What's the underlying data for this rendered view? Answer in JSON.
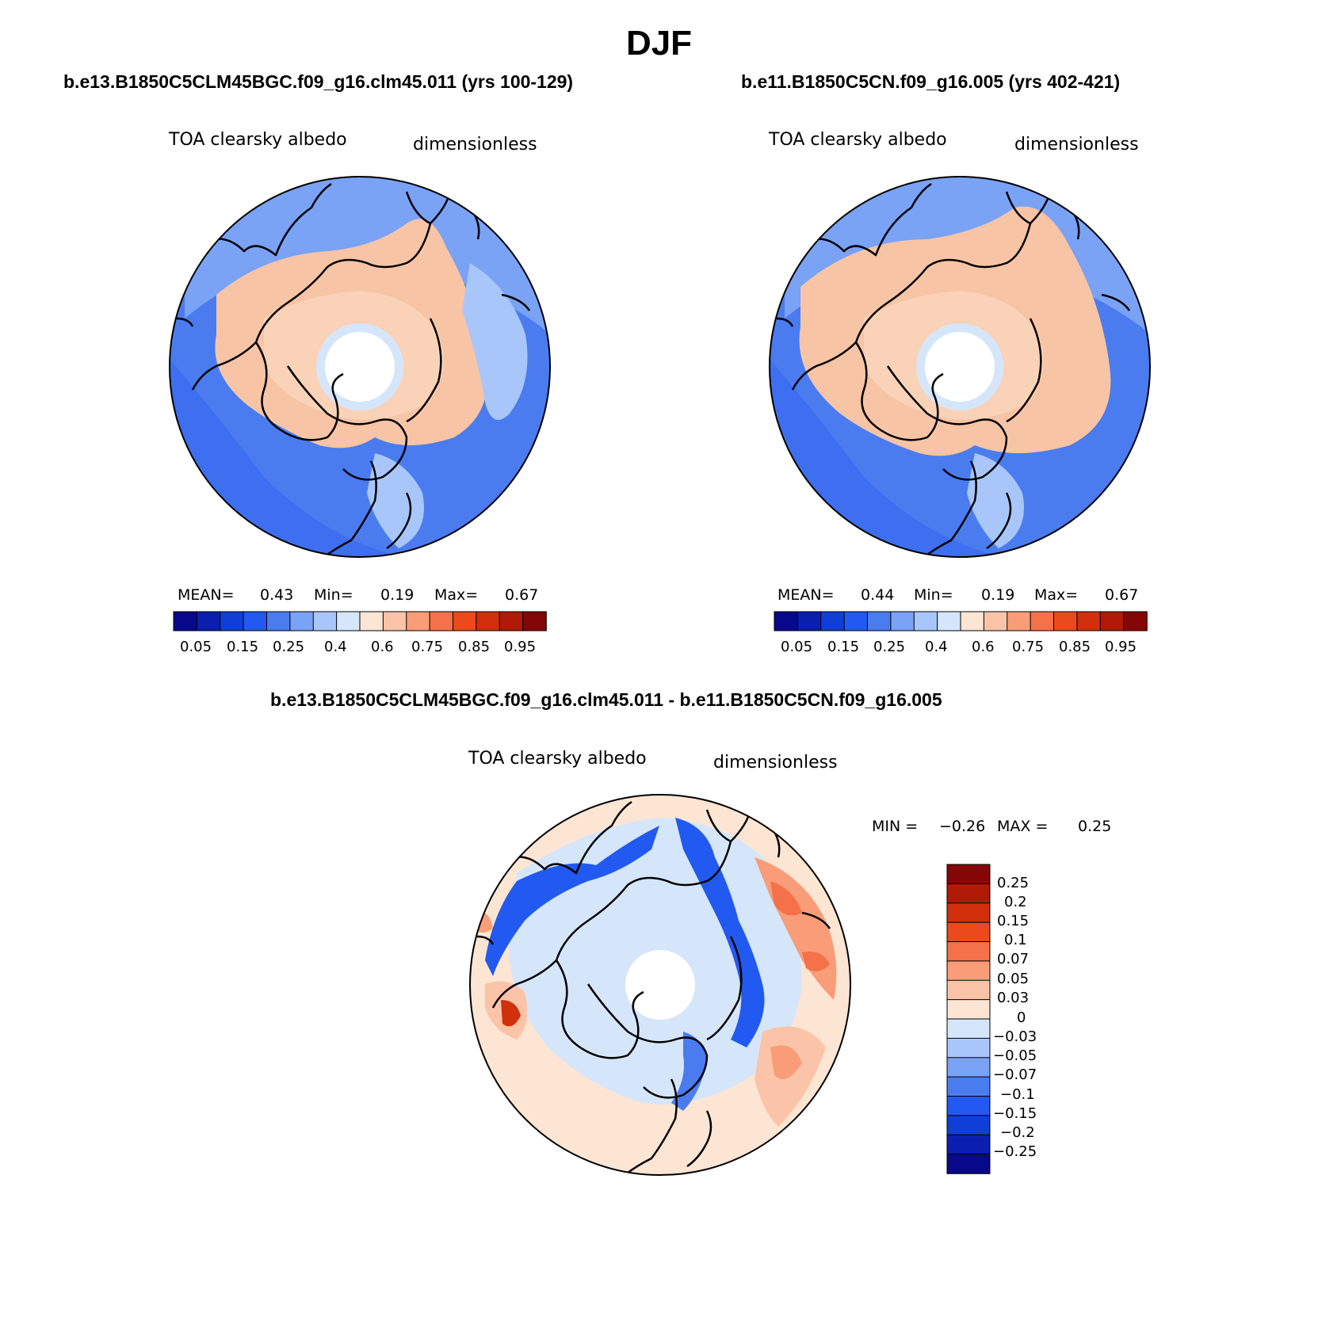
{
  "figure_title": "DJF",
  "panels": [
    {
      "subtitle": "b.e13.B1850C5CLM45BGC.f09_g16.clm45.011 (yrs 100-129)",
      "variable": "TOA clearsky albedo",
      "units": "dimensionless",
      "stats": {
        "mean_label": "MEAN=",
        "mean": "0.43",
        "min_label": "Min=",
        "min": "0.19",
        "max_label": "Max=",
        "max": "0.67"
      }
    },
    {
      "subtitle": "b.e11.B1850C5CN.f09_g16.005 (yrs 402-421)",
      "variable": "TOA clearsky albedo",
      "units": "dimensionless",
      "stats": {
        "mean_label": "MEAN=",
        "mean": "0.44",
        "min_label": "Min=",
        "min": "0.19",
        "max_label": "Max=",
        "max": "0.67"
      }
    },
    {
      "subtitle": "b.e13.B1850C5CLM45BGC.f09_g16.clm45.011 - b.e11.B1850C5CN.f09_g16.005",
      "variable": "TOA clearsky albedo",
      "units": "dimensionless",
      "stats": {
        "min_label": "MIN =",
        "min": "−0.26",
        "max_label": "MAX =",
        "max": "0.25"
      }
    }
  ],
  "colorbars": {
    "abs": {
      "colors": [
        "#08088a",
        "#0a1fb0",
        "#0f3fd6",
        "#2259f0",
        "#4a7cf0",
        "#7aa2f5",
        "#a9c6fa",
        "#d5e6fb",
        "#fde5d3",
        "#fbc4a8",
        "#f99c78",
        "#f4714a",
        "#eb4a1d",
        "#d22f0d",
        "#b01a06",
        "#840606"
      ],
      "tick_labels": [
        "0.05",
        "0.15",
        "0.25",
        "0.4",
        "0.6",
        "0.75",
        "0.85",
        "0.95"
      ]
    },
    "diff": {
      "colors": [
        "#08088a",
        "#0a1fb0",
        "#0f3fd6",
        "#2259f0",
        "#4a7cf0",
        "#7aa2f5",
        "#a9c6fa",
        "#d5e6fb",
        "#fde5d3",
        "#fbc4a8",
        "#f99c78",
        "#f4714a",
        "#eb4a1d",
        "#d22f0d",
        "#b01a06",
        "#840606"
      ],
      "tick_labels": [
        "0.25",
        "0.2",
        "0.15",
        "0.1",
        "0.07",
        "0.05",
        "0.03",
        "0",
        "−0.03",
        "−0.05",
        "−0.07",
        "−0.1",
        "−0.15",
        "−0.2",
        "−0.25"
      ]
    }
  },
  "map_colors": {
    "ocean_deep": "#3d6ff0",
    "ocean_mid": "#6f96f4",
    "ice_light": "#d5e6fb",
    "land_warm": "#f7c4a6",
    "land_pale": "#fde5d3",
    "diff_neutral": "#d5e6fb",
    "diff_neg": "#2259f0",
    "diff_pos": "#f4714a",
    "diff_pale_pos": "#fde5d3",
    "coast": "#000000"
  }
}
